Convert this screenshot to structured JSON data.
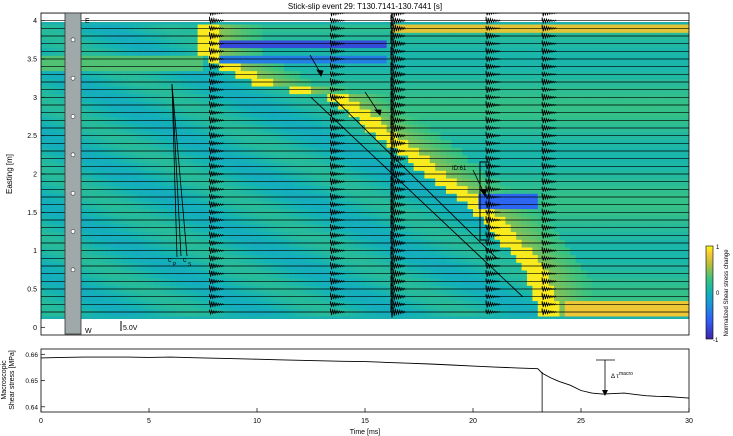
{
  "chart_data": [
    {
      "type": "heatmap",
      "title": "Stick-slip event 29: T130.7141-130.7441 [s]",
      "xlabel": "",
      "ylabel": "Easting [m]",
      "xlim": [
        0,
        30
      ],
      "ylim": [
        -0.1,
        4.1
      ],
      "yticks": [
        0,
        0.5,
        1,
        1.5,
        2,
        2.5,
        3,
        3.5,
        4
      ],
      "ytick_labels": [
        "0",
        "0.5",
        "1",
        "1.5",
        "2",
        "2.5",
        "3",
        "3.5",
        "4"
      ],
      "grid": false,
      "colormap": "parula",
      "colorbar": {
        "label": "Normalized Shear stress change",
        "range": [
          -1,
          1
        ],
        "ticks": [
          -1,
          0,
          1
        ],
        "tick_labels": [
          "-1",
          "0",
          "1"
        ]
      },
      "sensor_positions": [
        0.0,
        0.1,
        0.2,
        0.3,
        0.4,
        0.5,
        0.6,
        0.7,
        0.8,
        0.9,
        1.0,
        1.1,
        1.2,
        1.3,
        1.4,
        1.5,
        1.6,
        1.7,
        1.8,
        1.9,
        2.0,
        2.1,
        2.2,
        2.3,
        2.4,
        2.5,
        2.6,
        2.7,
        2.8,
        2.9,
        3.0,
        3.1,
        3.2,
        3.3,
        3.4,
        3.5,
        3.6,
        3.7,
        3.8,
        3.9
      ],
      "rupture_front": {
        "easting": [
          3.55,
          3.2,
          3.0,
          2.6,
          2.3,
          2.0,
          1.7,
          1.4,
          1.1,
          0.8,
          0.5,
          0.3,
          0.2
        ],
        "time_ms": [
          7.6,
          10.0,
          13.5,
          15.4,
          16.8,
          18.0,
          19.6,
          20.8,
          21.6,
          22.5,
          23.0,
          23.2,
          23.3
        ]
      },
      "waveform_bursts_ms": [
        7.8,
        13.4,
        16.2,
        20.6,
        23.2
      ],
      "annotations": {
        "cp_label": "c",
        "cp_subscript": "P",
        "cs_label": "c",
        "cs_subscript": "S",
        "e_label": "E",
        "w_label": "W",
        "scale_label": "5.0V",
        "box_label": "ID:61"
      },
      "sensor_dots_easting": [
        0.75,
        1.25,
        1.75,
        2.25,
        2.75,
        3.25,
        3.75
      ]
    },
    {
      "type": "line",
      "title": "",
      "xlabel": "Time [ms]",
      "ylabel": "Macroscopic\nShear stress [MPa]",
      "ylabel_lines": [
        "Macroscopic",
        "Shear stress [MPa]"
      ],
      "xlim": [
        0,
        30
      ],
      "ylim": [
        0.638,
        0.662
      ],
      "xticks": [
        0,
        5,
        10,
        15,
        20,
        25,
        30
      ],
      "xtick_labels": [
        "0",
        "5",
        "10",
        "15",
        "20",
        "25",
        "30"
      ],
      "yticks": [
        0.64,
        0.65,
        0.66
      ],
      "ytick_labels": [
        "0.64",
        "0.65",
        "0.66"
      ],
      "grid": false,
      "series": [
        {
          "x": [
            0,
            1,
            2,
            3,
            4,
            5,
            6,
            7,
            8,
            9,
            10,
            11,
            12,
            13,
            14,
            15,
            16,
            17,
            18,
            19,
            20,
            21,
            22,
            23,
            23.2,
            23.6,
            24,
            24.5,
            25,
            25.5,
            26,
            26.5,
            27,
            27.5,
            28,
            28.5,
            29,
            29.5,
            30
          ],
          "y": [
            0.6586,
            0.6588,
            0.6589,
            0.6589,
            0.6589,
            0.6588,
            0.6589,
            0.6587,
            0.6585,
            0.6583,
            0.6581,
            0.6579,
            0.6577,
            0.6575,
            0.6573,
            0.6572,
            0.6569,
            0.6566,
            0.6563,
            0.6559,
            0.6555,
            0.6551,
            0.6548,
            0.6545,
            0.6528,
            0.651,
            0.6496,
            0.6482,
            0.6462,
            0.6452,
            0.6448,
            0.645,
            0.6452,
            0.6447,
            0.6442,
            0.644,
            0.6439,
            0.6436,
            0.6433
          ]
        }
      ],
      "annotations": {
        "delta_label": "Δ τ",
        "delta_sup": "macro",
        "vline_ms": 23.2
      }
    }
  ]
}
